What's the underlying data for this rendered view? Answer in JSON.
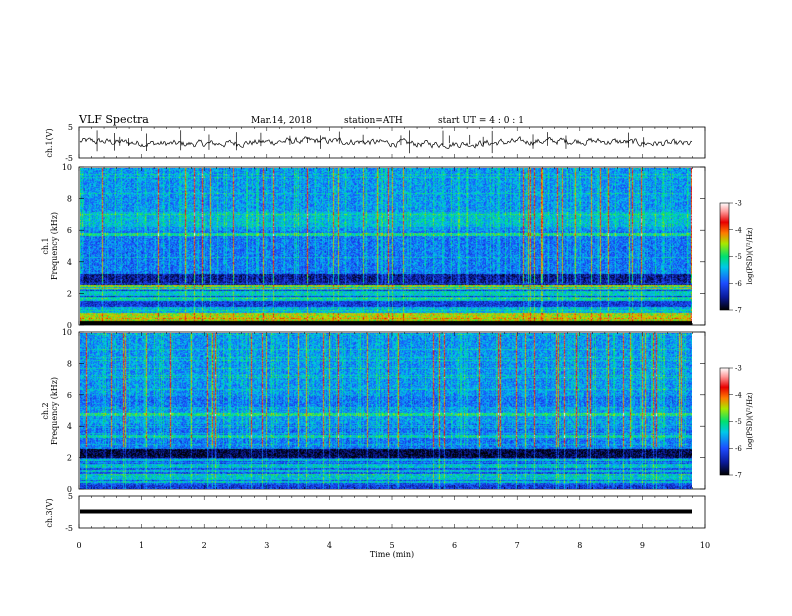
{
  "header": {
    "title": "VLF  Spectra",
    "date": "Mar.14, 2018",
    "station": "station=ATH",
    "start": "start  UT  =   4  : 0   : 1"
  },
  "chart_data": [
    {
      "type": "line",
      "name": "ch1-waveform",
      "ylabel": "ch.1(V)",
      "ylim": [
        -5,
        5
      ],
      "yticks": [
        "5",
        "-5"
      ],
      "xlim": [
        0,
        10
      ],
      "baseline": 0,
      "description_values": "noisy signal around 0 V with occasional spikes"
    },
    {
      "type": "heatmap",
      "name": "ch1-spectrogram",
      "ylabel": "Frequency  (kHz)",
      "channel": "ch.1",
      "ylim": [
        0,
        10
      ],
      "yticks": [
        "0",
        "2",
        "4",
        "6",
        "8",
        "10"
      ],
      "xlim": [
        0,
        10
      ],
      "data_end_min": 9.8,
      "colorbar": {
        "label": "log(PSD)(V²/Hz)",
        "range": [
          -7,
          -3
        ],
        "ticks": [
          "-3",
          "-4",
          "-5",
          "-6",
          "-7"
        ]
      }
    },
    {
      "type": "heatmap",
      "name": "ch2-spectrogram",
      "ylabel": "Frequency  (kHz)",
      "channel": "ch.2",
      "ylim": [
        0,
        10
      ],
      "yticks": [
        "0",
        "2",
        "4",
        "6",
        "8",
        "10"
      ],
      "xlim": [
        0,
        10
      ],
      "data_end_min": 9.8,
      "colorbar": {
        "label": "log(PSD)(V²/Hz)",
        "range": [
          -7,
          -3
        ],
        "ticks": [
          "-3",
          "-4",
          "-5",
          "-6",
          "-7"
        ]
      }
    },
    {
      "type": "line",
      "name": "ch3-waveform",
      "ylabel": "ch.3(V)",
      "ylim": [
        -5,
        5
      ],
      "yticks": [
        "5",
        "-5"
      ],
      "xlim": [
        0,
        10
      ],
      "baseline": 0
    }
  ],
  "xaxis": {
    "label": "Time  (min)",
    "ticks": [
      "0",
      "1",
      "2",
      "3",
      "4",
      "5",
      "6",
      "7",
      "8",
      "9",
      "10"
    ]
  }
}
